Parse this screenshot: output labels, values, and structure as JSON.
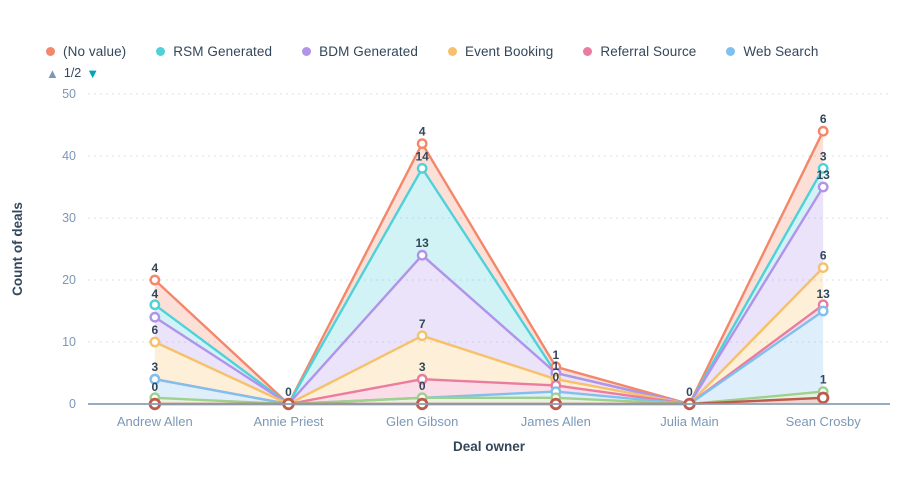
{
  "legend": {
    "items": [
      {
        "label": "(No value)",
        "color": "#F4876A"
      },
      {
        "label": "RSM Generated",
        "color": "#4ED1D9"
      },
      {
        "label": "BDM Generated",
        "color": "#B193EA"
      },
      {
        "label": "Event Booking",
        "color": "#F6C16A"
      },
      {
        "label": "Referral Source",
        "color": "#EA7CA0"
      },
      {
        "label": "Web Search",
        "color": "#7FC0EE"
      }
    ],
    "pager": {
      "label": "1/2",
      "up_color": "#7c98b6",
      "down_color": "#00a4bd"
    }
  },
  "chart_data": {
    "type": "area",
    "stacked": true,
    "title": "",
    "xlabel": "Deal owner",
    "ylabel": "Count of deals",
    "ylim": [
      0,
      50
    ],
    "yticks": [
      0,
      10,
      20,
      30,
      40,
      50
    ],
    "grid": "horizontal-dashed",
    "legend_position": "top-left",
    "categories": [
      "Andrew Allen",
      "Annie Priest",
      "Glen Gibson",
      "James Allen",
      "Julia Main",
      "Sean Crosby"
    ],
    "series_order": "bottom-to-top of stack",
    "series": [
      {
        "name": "",
        "legend_page": 2,
        "color": "#BF5B4D",
        "values": [
          0,
          0,
          0,
          0,
          0,
          1
        ],
        "point_labels": [
          "0",
          null,
          null,
          "0",
          null,
          null
        ]
      },
      {
        "name": "",
        "legend_page": 2,
        "color": "#9FD08D",
        "values": [
          1,
          0,
          1,
          1,
          0,
          1
        ],
        "point_labels": [
          null,
          null,
          null,
          null,
          null,
          "1"
        ]
      },
      {
        "name": "Web Search",
        "legend_page": 1,
        "color": "#7FC0EE",
        "values": [
          3,
          0,
          0,
          1,
          0,
          13
        ],
        "point_labels": [
          "3",
          null,
          "0",
          null,
          null,
          "13"
        ]
      },
      {
        "name": "Referral Source",
        "legend_page": 1,
        "color": "#EA7CA0",
        "values": [
          0,
          0,
          3,
          1,
          0,
          1
        ],
        "point_labels": [
          null,
          null,
          "3",
          null,
          null,
          null
        ]
      },
      {
        "name": "Event Booking",
        "legend_page": 1,
        "color": "#F6C16A",
        "values": [
          6,
          0,
          7,
          1,
          0,
          6
        ],
        "point_labels": [
          "6",
          null,
          "7",
          "1",
          null,
          "6"
        ]
      },
      {
        "name": "BDM Generated",
        "legend_page": 1,
        "color": "#B193EA",
        "values": [
          4,
          0,
          13,
          1,
          0,
          13
        ],
        "point_labels": [
          "4",
          null,
          "13",
          null,
          null,
          "13"
        ]
      },
      {
        "name": "RSM Generated",
        "legend_page": 1,
        "color": "#4ED1D9",
        "values": [
          2,
          0,
          14,
          0,
          0,
          3
        ],
        "point_labels": [
          null,
          null,
          "14",
          null,
          null,
          "3"
        ]
      },
      {
        "name": "(No value)",
        "legend_page": 1,
        "color": "#F4876A",
        "values": [
          4,
          0,
          4,
          1,
          0,
          6
        ],
        "point_labels": [
          "4",
          "0",
          "4",
          "1",
          "0",
          "6"
        ]
      }
    ]
  }
}
